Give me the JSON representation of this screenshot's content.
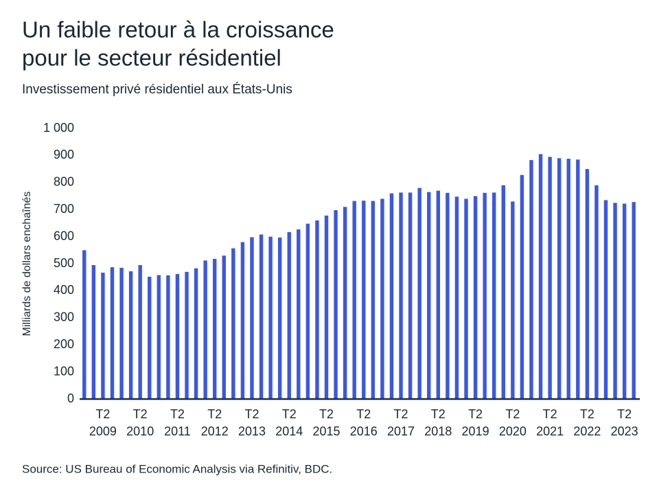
{
  "chart_data": {
    "type": "bar",
    "title_lines": [
      "Un faible retour à la croissance",
      "pour le secteur résidentiel"
    ],
    "subtitle": "Investissement privé résidentiel aux États-Unis",
    "y_label": "Milliards de dollars enchaînés",
    "source": "Source: US Bureau of Economic Analysis via Refinitiv, BDC.",
    "categories": [
      null,
      null,
      "T2",
      null,
      null,
      null,
      "T2",
      null,
      null,
      null,
      "T2",
      null,
      null,
      null,
      "T2",
      null,
      null,
      null,
      "T2",
      null,
      null,
      null,
      "T2",
      null,
      null,
      null,
      "T2",
      null,
      null,
      null,
      "T2",
      null,
      null,
      null,
      "T2",
      null,
      null,
      null,
      "T2",
      null,
      null,
      null,
      "T2",
      null,
      null,
      null,
      "T2",
      null,
      null,
      null,
      "T2",
      null,
      null,
      null,
      "T2",
      null,
      null,
      null,
      "T2",
      null
    ],
    "category_years": [
      null,
      null,
      "2009",
      null,
      null,
      null,
      "2010",
      null,
      null,
      null,
      "2011",
      null,
      null,
      null,
      "2012",
      null,
      null,
      null,
      "2013",
      null,
      null,
      null,
      "2014",
      null,
      null,
      null,
      "2015",
      null,
      null,
      null,
      "2016",
      null,
      null,
      null,
      "2017",
      null,
      null,
      null,
      "2018",
      null,
      null,
      null,
      "2019",
      null,
      null,
      null,
      "2020",
      null,
      null,
      null,
      "2021",
      null,
      null,
      null,
      "2022",
      null,
      null,
      null,
      "2023",
      null
    ],
    "values": [
      550,
      495,
      467,
      487,
      485,
      472,
      495,
      452,
      458,
      457,
      462,
      470,
      483,
      512,
      518,
      530,
      557,
      580,
      598,
      608,
      600,
      597,
      617,
      627,
      648,
      660,
      678,
      698,
      710,
      732,
      733,
      732,
      740,
      760,
      763,
      763,
      780,
      765,
      770,
      762,
      748,
      740,
      750,
      762,
      763,
      790,
      730,
      828,
      883,
      905,
      895,
      890,
      888,
      885,
      850,
      790,
      735,
      725,
      722,
      728
    ],
    "color": "#3b57e3",
    "ylim": [
      0,
      1000
    ],
    "yticks": [
      0,
      100,
      200,
      300,
      400,
      500,
      600,
      700,
      800,
      900,
      {
        "value": 1000,
        "label": "1 000"
      }
    ],
    "grid": false
  }
}
